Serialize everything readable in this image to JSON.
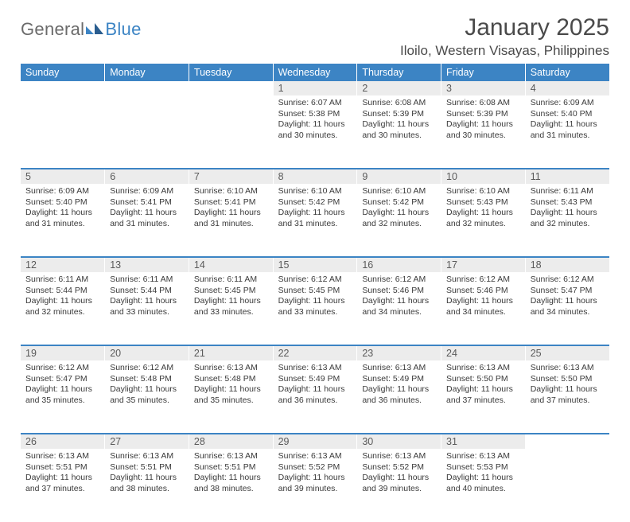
{
  "logo": {
    "text1": "General",
    "text2": "Blue"
  },
  "title": "January 2025",
  "location": "Iloilo, Western Visayas, Philippines",
  "colors": {
    "header_bg": "#3c84c4",
    "header_text": "#ffffff",
    "daynum_bg": "#ececec",
    "border": "#3c84c4",
    "text": "#3a3a3a",
    "logo_gray": "#6b6b6b",
    "logo_blue": "#3c84c4"
  },
  "day_headers": [
    "Sunday",
    "Monday",
    "Tuesday",
    "Wednesday",
    "Thursday",
    "Friday",
    "Saturday"
  ],
  "weeks": [
    {
      "nums": [
        "",
        "",
        "",
        "1",
        "2",
        "3",
        "4"
      ],
      "cells": [
        null,
        null,
        null,
        {
          "sunrise": "6:07 AM",
          "sunset": "5:38 PM",
          "daylight": "11 hours and 30 minutes."
        },
        {
          "sunrise": "6:08 AM",
          "sunset": "5:39 PM",
          "daylight": "11 hours and 30 minutes."
        },
        {
          "sunrise": "6:08 AM",
          "sunset": "5:39 PM",
          "daylight": "11 hours and 30 minutes."
        },
        {
          "sunrise": "6:09 AM",
          "sunset": "5:40 PM",
          "daylight": "11 hours and 31 minutes."
        }
      ]
    },
    {
      "nums": [
        "5",
        "6",
        "7",
        "8",
        "9",
        "10",
        "11"
      ],
      "cells": [
        {
          "sunrise": "6:09 AM",
          "sunset": "5:40 PM",
          "daylight": "11 hours and 31 minutes."
        },
        {
          "sunrise": "6:09 AM",
          "sunset": "5:41 PM",
          "daylight": "11 hours and 31 minutes."
        },
        {
          "sunrise": "6:10 AM",
          "sunset": "5:41 PM",
          "daylight": "11 hours and 31 minutes."
        },
        {
          "sunrise": "6:10 AM",
          "sunset": "5:42 PM",
          "daylight": "11 hours and 31 minutes."
        },
        {
          "sunrise": "6:10 AM",
          "sunset": "5:42 PM",
          "daylight": "11 hours and 32 minutes."
        },
        {
          "sunrise": "6:10 AM",
          "sunset": "5:43 PM",
          "daylight": "11 hours and 32 minutes."
        },
        {
          "sunrise": "6:11 AM",
          "sunset": "5:43 PM",
          "daylight": "11 hours and 32 minutes."
        }
      ]
    },
    {
      "nums": [
        "12",
        "13",
        "14",
        "15",
        "16",
        "17",
        "18"
      ],
      "cells": [
        {
          "sunrise": "6:11 AM",
          "sunset": "5:44 PM",
          "daylight": "11 hours and 32 minutes."
        },
        {
          "sunrise": "6:11 AM",
          "sunset": "5:44 PM",
          "daylight": "11 hours and 33 minutes."
        },
        {
          "sunrise": "6:11 AM",
          "sunset": "5:45 PM",
          "daylight": "11 hours and 33 minutes."
        },
        {
          "sunrise": "6:12 AM",
          "sunset": "5:45 PM",
          "daylight": "11 hours and 33 minutes."
        },
        {
          "sunrise": "6:12 AM",
          "sunset": "5:46 PM",
          "daylight": "11 hours and 34 minutes."
        },
        {
          "sunrise": "6:12 AM",
          "sunset": "5:46 PM",
          "daylight": "11 hours and 34 minutes."
        },
        {
          "sunrise": "6:12 AM",
          "sunset": "5:47 PM",
          "daylight": "11 hours and 34 minutes."
        }
      ]
    },
    {
      "nums": [
        "19",
        "20",
        "21",
        "22",
        "23",
        "24",
        "25"
      ],
      "cells": [
        {
          "sunrise": "6:12 AM",
          "sunset": "5:47 PM",
          "daylight": "11 hours and 35 minutes."
        },
        {
          "sunrise": "6:12 AM",
          "sunset": "5:48 PM",
          "daylight": "11 hours and 35 minutes."
        },
        {
          "sunrise": "6:13 AM",
          "sunset": "5:48 PM",
          "daylight": "11 hours and 35 minutes."
        },
        {
          "sunrise": "6:13 AM",
          "sunset": "5:49 PM",
          "daylight": "11 hours and 36 minutes."
        },
        {
          "sunrise": "6:13 AM",
          "sunset": "5:49 PM",
          "daylight": "11 hours and 36 minutes."
        },
        {
          "sunrise": "6:13 AM",
          "sunset": "5:50 PM",
          "daylight": "11 hours and 37 minutes."
        },
        {
          "sunrise": "6:13 AM",
          "sunset": "5:50 PM",
          "daylight": "11 hours and 37 minutes."
        }
      ]
    },
    {
      "nums": [
        "26",
        "27",
        "28",
        "29",
        "30",
        "31",
        ""
      ],
      "cells": [
        {
          "sunrise": "6:13 AM",
          "sunset": "5:51 PM",
          "daylight": "11 hours and 37 minutes."
        },
        {
          "sunrise": "6:13 AM",
          "sunset": "5:51 PM",
          "daylight": "11 hours and 38 minutes."
        },
        {
          "sunrise": "6:13 AM",
          "sunset": "5:51 PM",
          "daylight": "11 hours and 38 minutes."
        },
        {
          "sunrise": "6:13 AM",
          "sunset": "5:52 PM",
          "daylight": "11 hours and 39 minutes."
        },
        {
          "sunrise": "6:13 AM",
          "sunset": "5:52 PM",
          "daylight": "11 hours and 39 minutes."
        },
        {
          "sunrise": "6:13 AM",
          "sunset": "5:53 PM",
          "daylight": "11 hours and 40 minutes."
        },
        null
      ]
    }
  ],
  "labels": {
    "sunrise": "Sunrise: ",
    "sunset": "Sunset: ",
    "daylight": "Daylight: "
  }
}
